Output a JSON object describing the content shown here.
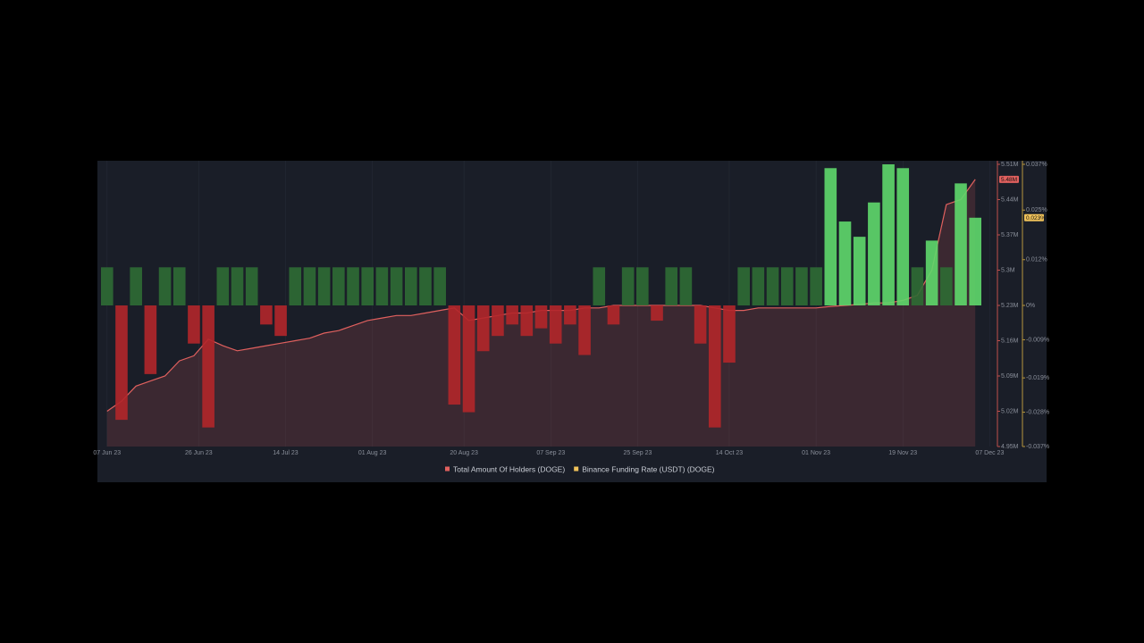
{
  "chart_data": {
    "type": "bar-line",
    "x": [
      "2023-06-07",
      "2023-06-10",
      "2023-06-13",
      "2023-06-16",
      "2023-06-19",
      "2023-06-22",
      "2023-06-25",
      "2023-06-28",
      "2023-07-01",
      "2023-07-04",
      "2023-07-07",
      "2023-07-10",
      "2023-07-13",
      "2023-07-16",
      "2023-07-19",
      "2023-07-22",
      "2023-07-25",
      "2023-07-28",
      "2023-07-31",
      "2023-08-03",
      "2023-08-06",
      "2023-08-09",
      "2023-08-12",
      "2023-08-15",
      "2023-08-18",
      "2023-08-21",
      "2023-08-24",
      "2023-08-27",
      "2023-08-30",
      "2023-09-02",
      "2023-09-05",
      "2023-09-08",
      "2023-09-11",
      "2023-09-14",
      "2023-09-17",
      "2023-09-20",
      "2023-09-23",
      "2023-09-26",
      "2023-09-29",
      "2023-10-02",
      "2023-10-05",
      "2023-10-08",
      "2023-10-11",
      "2023-10-14",
      "2023-10-17",
      "2023-10-20",
      "2023-10-23",
      "2023-10-26",
      "2023-10-29",
      "2023-11-01",
      "2023-11-04",
      "2023-11-07",
      "2023-11-10",
      "2023-11-13",
      "2023-11-16",
      "2023-11-19",
      "2023-11-22",
      "2023-11-25",
      "2023-11-28",
      "2023-12-01",
      "2023-12-04"
    ],
    "xlim": [
      "2023-06-05",
      "2023-12-06"
    ],
    "xticks": [
      {
        "value": "2023-06-07",
        "label": "07 Jun 23"
      },
      {
        "value": "2023-06-26",
        "label": "26 Jun 23"
      },
      {
        "value": "2023-07-14",
        "label": "14 Jul 23"
      },
      {
        "value": "2023-08-01",
        "label": "01 Aug 23"
      },
      {
        "value": "2023-08-20",
        "label": "20 Aug 23"
      },
      {
        "value": "2023-09-07",
        "label": "07 Sep 23"
      },
      {
        "value": "2023-09-25",
        "label": "25 Sep 23"
      },
      {
        "value": "2023-10-14",
        "label": "14 Oct 23"
      },
      {
        "value": "2023-11-01",
        "label": "01 Nov 23"
      },
      {
        "value": "2023-11-19",
        "label": "19 Nov 23"
      },
      {
        "value": "2023-12-07",
        "label": "07 Dec 23"
      }
    ],
    "ylim": [
      4950000,
      5510000
    ],
    "yticks": [
      {
        "value": 5510000,
        "label": "5.51M"
      },
      {
        "value": 5440000,
        "label": "5.44M"
      },
      {
        "value": 5370000,
        "label": "5.37M"
      },
      {
        "value": 5300000,
        "label": "5.3M"
      },
      {
        "value": 5230000,
        "label": "5.23M"
      },
      {
        "value": 5160000,
        "label": "5.16M"
      },
      {
        "value": 5090000,
        "label": "5.09M"
      },
      {
        "value": 5020000,
        "label": "5.02M"
      },
      {
        "value": 4950000,
        "label": "4.95M"
      }
    ],
    "y2lim": [
      -0.037,
      0.037
    ],
    "y2ticks": [
      {
        "value": 0.037,
        "label": "0.037%"
      },
      {
        "value": 0.025,
        "label": "0.025%"
      },
      {
        "value": 0.012,
        "label": "0.012%"
      },
      {
        "value": 0,
        "label": "0%"
      },
      {
        "value": -0.009,
        "label": "-0.009%"
      },
      {
        "value": -0.019,
        "label": "-0.019%"
      },
      {
        "value": -0.028,
        "label": "-0.028%"
      },
      {
        "value": -0.037,
        "label": "-0.037%"
      }
    ],
    "series": [
      {
        "name": "Total Amount Of Holders (DOGE)",
        "color": "#e0605e",
        "kind": "area",
        "values": [
          5020000,
          5040000,
          5070000,
          5080000,
          5090000,
          5120000,
          5130000,
          5163000,
          5150000,
          5140000,
          5145000,
          5150000,
          5155000,
          5160000,
          5165000,
          5175000,
          5180000,
          5190000,
          5200000,
          5205000,
          5210000,
          5210000,
          5215000,
          5220000,
          5225000,
          5200000,
          5205000,
          5210000,
          5215000,
          5215000,
          5220000,
          5220000,
          5220000,
          5225000,
          5225000,
          5230000,
          5230000,
          5230000,
          5230000,
          5230000,
          5230000,
          5230000,
          5225000,
          5220000,
          5220000,
          5225000,
          5225000,
          5225000,
          5225000,
          5225000,
          5228000,
          5230000,
          5232000,
          5235000,
          5235000,
          5240000,
          5250000,
          5300000,
          5430000,
          5440000,
          5480000
        ],
        "last_label": "5.48M"
      },
      {
        "name": "Binance Funding Rate (USDT) (DOGE)",
        "color": "#f0c25a",
        "kind": "bar",
        "axis": "y2",
        "positive_color": "#2f6b34",
        "spike_color": "#5fd86c",
        "negative_color": "#b3262a",
        "values": [
          0.01,
          -0.03,
          0.01,
          -0.018,
          0.01,
          0.01,
          -0.01,
          -0.032,
          0.01,
          0.01,
          0.01,
          -0.005,
          -0.008,
          0.01,
          0.01,
          0.01,
          0.01,
          0.01,
          0.01,
          0.01,
          0.01,
          0.01,
          0.01,
          0.01,
          -0.026,
          -0.028,
          -0.012,
          -0.008,
          -0.005,
          -0.008,
          -0.006,
          -0.01,
          -0.005,
          -0.013,
          0.01,
          -0.005,
          0.01,
          0.01,
          -0.004,
          0.01,
          0.01,
          -0.01,
          -0.032,
          -0.015,
          0.01,
          0.01,
          0.01,
          0.01,
          0.01,
          0.01,
          0.036,
          0.022,
          0.018,
          0.027,
          0.037,
          0.036,
          0.01,
          0.017,
          0.01,
          0.032,
          0.023
        ],
        "last_label": "0.023%"
      }
    ]
  }
}
